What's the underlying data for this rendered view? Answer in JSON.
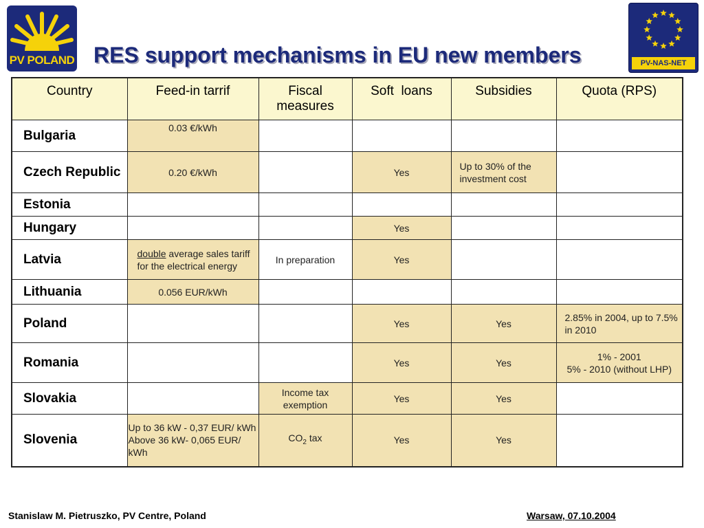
{
  "logos": {
    "left_text": "PV POLAND",
    "right_text": "PV-NAS-NET"
  },
  "title": "RES support mechanisms in EU new members",
  "table": {
    "headers": [
      "Country",
      "Feed-in tarrif",
      "Fiscal measures",
      "Soft  loans",
      "Subsidies",
      "Quota (RPS)"
    ],
    "rows": [
      {
        "country": "Bulgaria",
        "feed_in": "0.03 €/kWh",
        "fiscal": "",
        "soft_loans": "",
        "subsidies": "",
        "quota": ""
      },
      {
        "country": "Czech Republic",
        "feed_in": "0.20 €/kWh",
        "fiscal": "",
        "soft_loans": "Yes",
        "subsidies": "Up to 30% of the investment cost",
        "quota": ""
      },
      {
        "country": "Estonia",
        "feed_in": "",
        "fiscal": "",
        "soft_loans": "",
        "subsidies": "",
        "quota": ""
      },
      {
        "country": "Hungary",
        "feed_in": "",
        "fiscal": "",
        "soft_loans": "Yes",
        "subsidies": "",
        "quota": ""
      },
      {
        "country": "Latvia",
        "feed_in_underlined": "double",
        "feed_in_rest": " average sales tariff for the electrical energy",
        "fiscal": "In preparation",
        "soft_loans": "Yes",
        "subsidies": "",
        "quota": ""
      },
      {
        "country": "Lithuania",
        "feed_in": "0.056 EUR/kWh",
        "fiscal": "",
        "soft_loans": "",
        "subsidies": "",
        "quota": ""
      },
      {
        "country": "Poland",
        "feed_in": "",
        "fiscal": "",
        "soft_loans": "Yes",
        "subsidies": "Yes",
        "quota": "2.85% in 2004, up to 7.5% in 2010"
      },
      {
        "country": "Romania",
        "feed_in": "",
        "fiscal": "",
        "soft_loans": "Yes",
        "subsidies": "Yes",
        "quota_line1": "1% - 2001",
        "quota_line2": "5% - 2010 (without LHP)"
      },
      {
        "country": "Slovakia",
        "feed_in": "",
        "fiscal": "Income tax exemption",
        "soft_loans": "Yes",
        "subsidies": "Yes",
        "quota": ""
      },
      {
        "country": "Slovenia",
        "feed_in_line1": "Up to 36 kW - 0,37 EUR/ kWh",
        "feed_in_line2": "Above 36 kW- 0,065 EUR/ kWh",
        "fiscal_base": "CO",
        "fiscal_sub": "2",
        "fiscal_rest": " tax",
        "soft_loans": "Yes",
        "subsidies": "Yes",
        "quota": ""
      }
    ]
  },
  "footer": {
    "left": "Stanislaw M. Pietruszko, PV Centre, Poland",
    "right": "Warsaw,  07.10.2004"
  },
  "colors": {
    "title": "#1c2a7a",
    "header_bg": "#fbf7cf",
    "highlight_bg": "#f2e2b3"
  }
}
